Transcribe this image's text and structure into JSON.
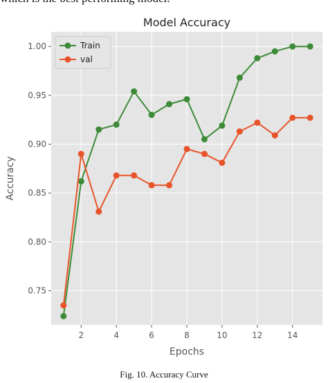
{
  "page": {
    "top_text": "which is the best performing model.",
    "caption": "Fig. 10. Accuracy Curve"
  },
  "chart_data": {
    "type": "line",
    "title": "Model Accuracy",
    "xlabel": "Epochs",
    "ylabel": "Accuracy",
    "xlim": [
      0.3,
      15.7
    ],
    "ylim": [
      0.715,
      1.015
    ],
    "xticks": [
      2,
      4,
      6,
      8,
      10,
      12,
      14
    ],
    "yticks": [
      0.75,
      0.8,
      0.85,
      0.9,
      0.95,
      1.0
    ],
    "ytick_labels": [
      "0.75",
      "0.80",
      "0.85",
      "0.90",
      "0.95",
      "1.00"
    ],
    "grid": true,
    "legend_position": "upper-left",
    "x": [
      1,
      2,
      3,
      4,
      5,
      6,
      7,
      8,
      9,
      10,
      11,
      12,
      13,
      14,
      15
    ],
    "series": [
      {
        "name": "Train",
        "color": "#3d8b37",
        "values": [
          0.724,
          0.862,
          0.915,
          0.92,
          0.954,
          0.93,
          0.941,
          0.946,
          0.905,
          0.919,
          0.968,
          0.988,
          0.995,
          1.0,
          1.0
        ]
      },
      {
        "name": "val",
        "color": "#e8542a",
        "values": [
          0.735,
          0.89,
          0.831,
          0.868,
          0.868,
          0.858,
          0.858,
          0.895,
          0.89,
          0.881,
          0.913,
          0.922,
          0.909,
          0.927,
          0.927
        ]
      }
    ]
  }
}
